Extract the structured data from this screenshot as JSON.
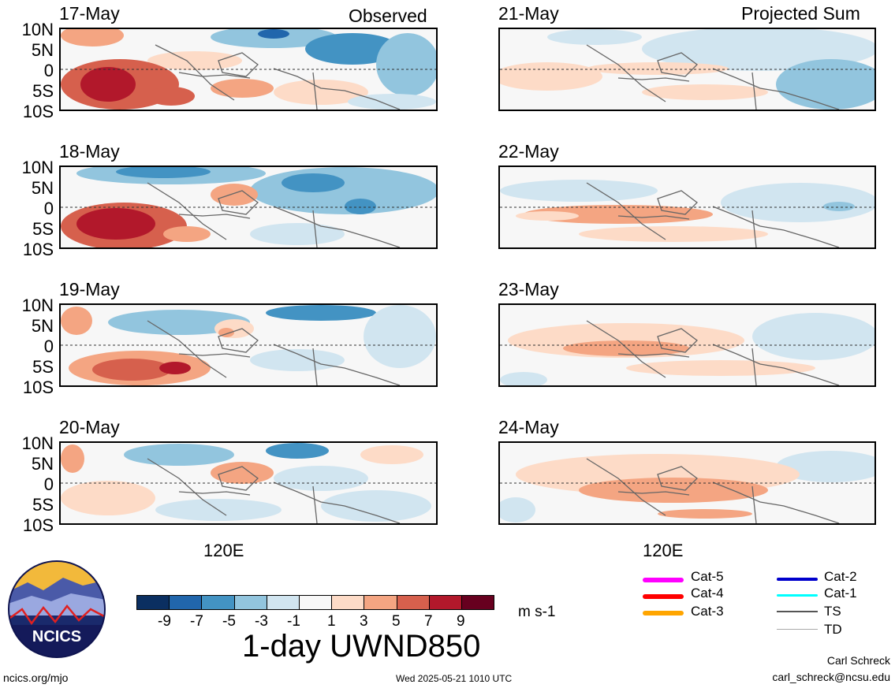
{
  "titles": {
    "observed": "Observed",
    "projected": "Projected Sum"
  },
  "lat_ticks": [
    "10N",
    "5N",
    "0",
    "5S",
    "10S"
  ],
  "lon_tick": "120E",
  "panels": [
    {
      "date": "17-May",
      "group": "observed"
    },
    {
      "date": "18-May",
      "group": "observed"
    },
    {
      "date": "19-May",
      "group": "observed"
    },
    {
      "date": "20-May",
      "group": "observed"
    },
    {
      "date": "21-May",
      "group": "projected"
    },
    {
      "date": "22-May",
      "group": "projected"
    },
    {
      "date": "23-May",
      "group": "projected"
    },
    {
      "date": "24-May",
      "group": "projected"
    }
  ],
  "colorbar": {
    "labels": [
      "-9",
      "-7",
      "-5",
      "-3",
      "-1",
      "1",
      "3",
      "5",
      "7",
      "9"
    ],
    "colors": [
      "#0b2f61",
      "#2166ac",
      "#4393c3",
      "#92c5de",
      "#d1e5f0",
      "#f7f7f7",
      "#fddbc7",
      "#f4a582",
      "#d6604d",
      "#b2182b",
      "#67001f"
    ],
    "units": "m s-1",
    "title": "1-day UWND850"
  },
  "legend": [
    {
      "label": "Cat-5",
      "color": "#ff00ff"
    },
    {
      "label": "Cat-4",
      "color": "#ff0000"
    },
    {
      "label": "Cat-3",
      "color": "#ffa500"
    },
    {
      "label": "Cat-2",
      "color": "#0000cc"
    },
    {
      "label": "Cat-1",
      "color": "#00ffff"
    },
    {
      "label": "TS",
      "color": "#555555"
    },
    {
      "label": "TD",
      "color": "#aaaaaa"
    }
  ],
  "logo": {
    "text": "NCICS"
  },
  "footer": {
    "url": "ncics.org/mjo",
    "timestamp": "Wed 2025-05-21 1010 UTC",
    "author": "Carl Schreck",
    "email": "carl_schreck@ncsu.edu"
  }
}
